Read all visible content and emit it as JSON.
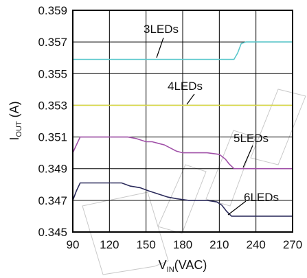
{
  "chart_data": {
    "type": "line",
    "xlabel": {
      "main": "V",
      "sub": "IN",
      "rest": "(VAC)"
    },
    "ylabel": {
      "main": "I",
      "sub": "OUT",
      "rest": " (A)"
    },
    "xlim": [
      90,
      270
    ],
    "ylim": [
      0.345,
      0.359
    ],
    "x_ticks": [
      "90",
      "120",
      "150",
      "180",
      "210",
      "240",
      "270"
    ],
    "y_ticks": [
      "0.345",
      "0.347",
      "0.349",
      "0.351",
      "0.353",
      "0.355",
      "0.357",
      "0.359"
    ],
    "grid": true,
    "series": [
      {
        "name": "3LEDs",
        "color": "#5bc8cc",
        "points": [
          [
            90,
            0.3559
          ],
          [
            222,
            0.3559
          ],
          [
            225,
            0.3563
          ],
          [
            228,
            0.3569
          ],
          [
            232,
            0.357
          ],
          [
            270,
            0.357
          ]
        ]
      },
      {
        "name": "4LEDs",
        "color": "#d8d84a",
        "points": [
          [
            90,
            0.353
          ],
          [
            270,
            0.353
          ]
        ]
      },
      {
        "name": "5LEDs",
        "color": "#a050a8",
        "points": [
          [
            90,
            0.35
          ],
          [
            93,
            0.3505
          ],
          [
            96,
            0.351
          ],
          [
            100,
            0.351
          ],
          [
            135,
            0.351
          ],
          [
            142,
            0.3509
          ],
          [
            150,
            0.3507
          ],
          [
            155,
            0.3507
          ],
          [
            160,
            0.3506
          ],
          [
            165,
            0.3505
          ],
          [
            170,
            0.3503
          ],
          [
            175,
            0.3501
          ],
          [
            180,
            0.35
          ],
          [
            200,
            0.35
          ],
          [
            210,
            0.3499
          ],
          [
            215,
            0.3496
          ],
          [
            218,
            0.3493
          ],
          [
            222,
            0.349
          ],
          [
            270,
            0.349
          ]
        ]
      },
      {
        "name": "6LEDs",
        "color": "#2a2a5a",
        "points": [
          [
            90,
            0.347
          ],
          [
            93,
            0.3476
          ],
          [
            96,
            0.3481
          ],
          [
            100,
            0.3481
          ],
          [
            130,
            0.3481
          ],
          [
            137,
            0.3479
          ],
          [
            145,
            0.3478
          ],
          [
            152,
            0.3476
          ],
          [
            160,
            0.3474
          ],
          [
            168,
            0.3472
          ],
          [
            175,
            0.3471
          ],
          [
            185,
            0.347
          ],
          [
            200,
            0.347
          ],
          [
            208,
            0.3469
          ],
          [
            212,
            0.3467
          ],
          [
            216,
            0.3463
          ],
          [
            220,
            0.346
          ],
          [
            270,
            0.346
          ]
        ]
      }
    ],
    "annotations": [
      {
        "text": "3LEDs",
        "series": "3LEDs"
      },
      {
        "text": "4LEDs",
        "series": "4LEDs"
      },
      {
        "text": "5LEDs",
        "series": "5LEDs"
      },
      {
        "text": "6LEDs",
        "series": "6LEDs"
      }
    ]
  }
}
